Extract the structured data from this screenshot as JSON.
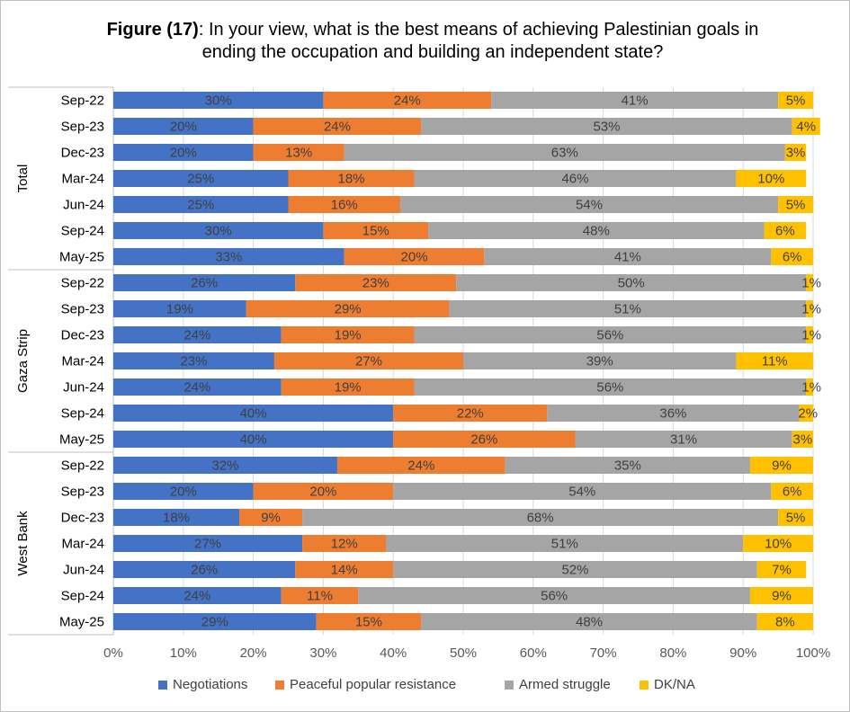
{
  "title": {
    "prefix": "Figure (17)",
    "text": ": In your view, what is the best means of achieving Palestinian goals in ending the occupation and building an independent state?"
  },
  "chart_data": {
    "type": "bar",
    "orientation": "horizontal",
    "stacked": true,
    "groups": [
      "Total",
      "Gaza Strip",
      "West Bank"
    ],
    "categories": [
      "Sep-22",
      "Sep-23",
      "Dec-23",
      "Mar-24",
      "Jun-24",
      "Sep-24",
      "May-25"
    ],
    "series": [
      {
        "name": "Negotiations",
        "color": "#4472C4",
        "values": [
          [
            30,
            20,
            20,
            25,
            25,
            30,
            33
          ],
          [
            26,
            19,
            24,
            23,
            24,
            40,
            40
          ],
          [
            32,
            20,
            18,
            27,
            26,
            24,
            29
          ]
        ]
      },
      {
        "name": "Peaceful popular resistance",
        "color": "#ED7D31",
        "values": [
          [
            24,
            24,
            13,
            18,
            16,
            15,
            20
          ],
          [
            23,
            29,
            19,
            27,
            19,
            22,
            26
          ],
          [
            24,
            20,
            9,
            12,
            14,
            11,
            15
          ]
        ]
      },
      {
        "name": "Armed struggle",
        "color": "#A5A5A5",
        "values": [
          [
            41,
            53,
            63,
            46,
            54,
            48,
            41
          ],
          [
            50,
            51,
            56,
            39,
            56,
            36,
            31
          ],
          [
            35,
            54,
            68,
            51,
            52,
            56,
            48
          ]
        ]
      },
      {
        "name": "DK/NA",
        "color": "#FFC000",
        "values": [
          [
            5,
            4,
            3,
            10,
            5,
            6,
            6
          ],
          [
            1,
            1,
            1,
            11,
            1,
            2,
            3
          ],
          [
            9,
            6,
            5,
            10,
            7,
            9,
            8
          ]
        ]
      }
    ],
    "x_ticks": [
      "0%",
      "10%",
      "20%",
      "30%",
      "40%",
      "50%",
      "60%",
      "70%",
      "80%",
      "90%",
      "100%"
    ],
    "xlim": [
      0,
      100
    ],
    "grid": true,
    "legend_position": "bottom"
  }
}
